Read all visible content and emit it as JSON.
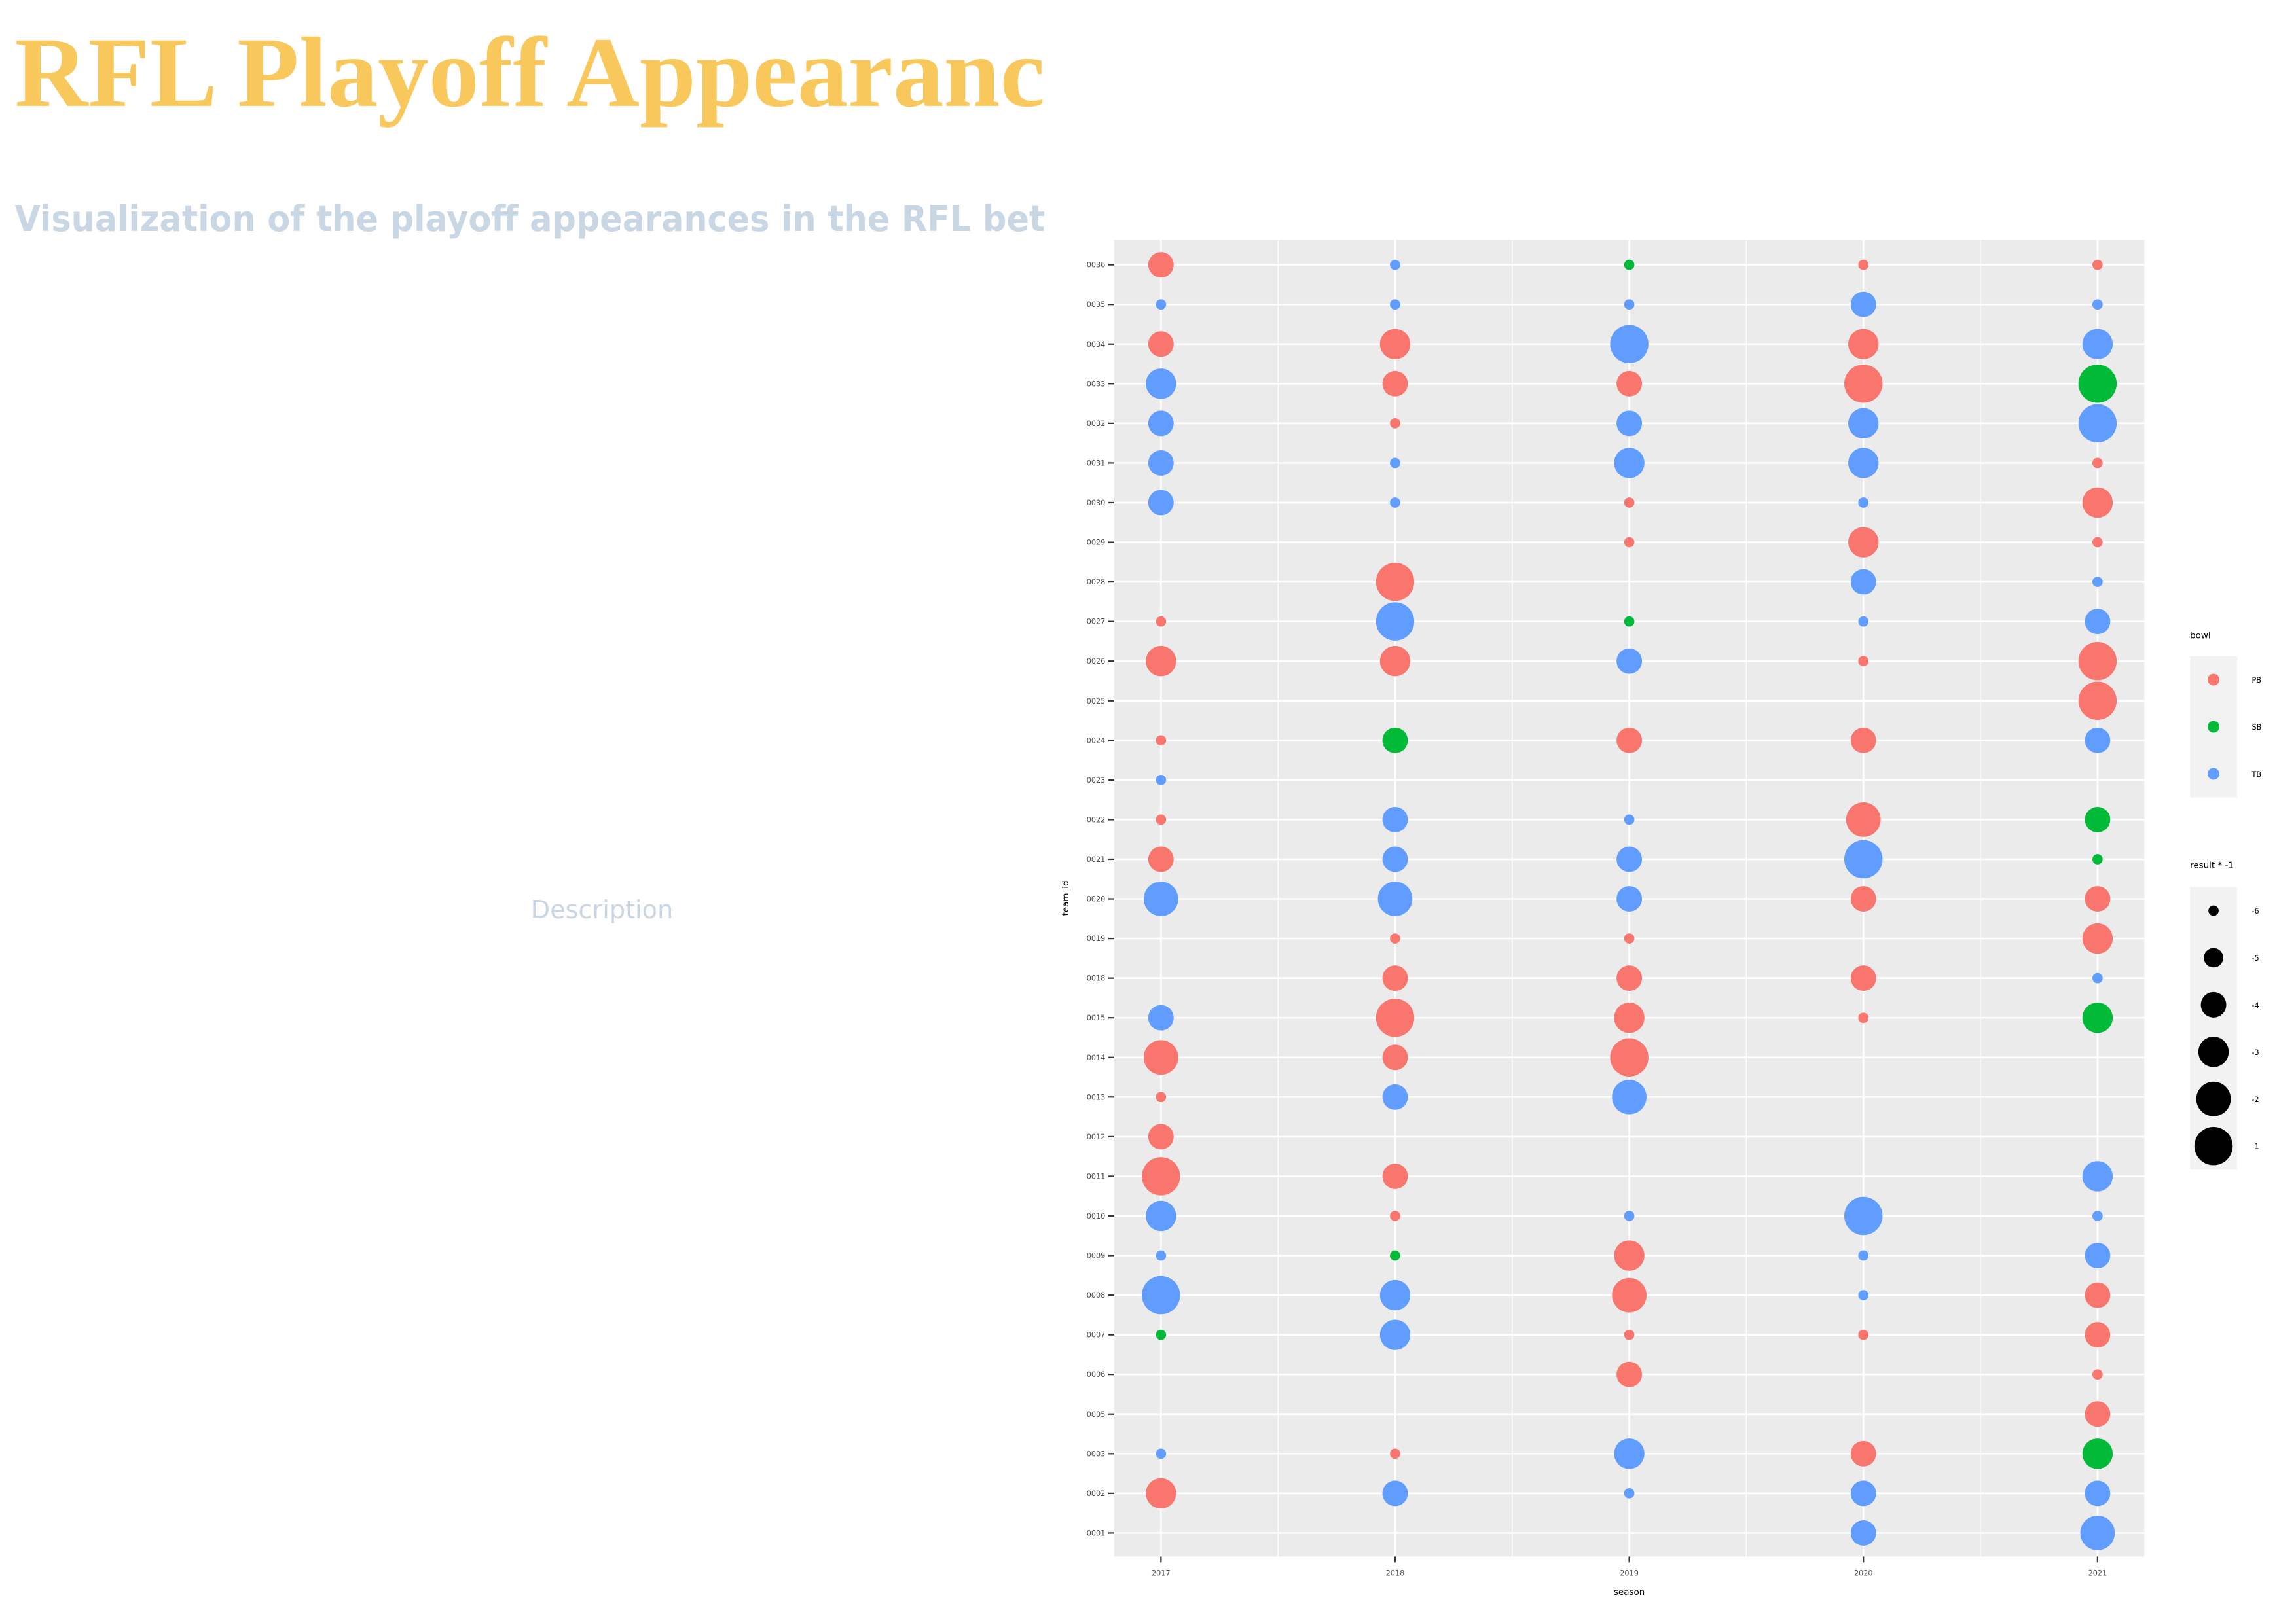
{
  "header": {
    "title": "RFL Playoff Appearanc",
    "subtitle": "Visualization of the playoff appearances in the RFL bet",
    "description": "Description"
  },
  "chart_data": {
    "type": "scatter",
    "x_label": "season",
    "y_label": "team_id",
    "xlim": [
      2016.8,
      2021.2
    ],
    "xticks": [
      2017,
      2018,
      2019,
      2020,
      2021
    ],
    "y_categories": [
      "0001",
      "0002",
      "0003",
      "0005",
      "0006",
      "0007",
      "0008",
      "0009",
      "0010",
      "0011",
      "0012",
      "0013",
      "0014",
      "0015",
      "0018",
      "0019",
      "0020",
      "0021",
      "0022",
      "0023",
      "0024",
      "0025",
      "0026",
      "0027",
      "0028",
      "0029",
      "0030",
      "0031",
      "0032",
      "0033",
      "0034",
      "0035",
      "0036"
    ],
    "grid": true,
    "legend_title": "bowl",
    "size_legend": {
      "title": "result * -1",
      "values": [
        -6,
        -5,
        -4,
        -3,
        -2,
        -1
      ]
    },
    "sizelim": [
      -6,
      -1
    ],
    "series": [
      {
        "name": "PB",
        "color": "#F8766D",
        "x": [
          2017,
          2020,
          2021,
          2017,
          2018,
          2020,
          2018,
          2019,
          2020,
          2018,
          2021,
          2019,
          2021,
          2019,
          2020,
          2021,
          2018,
          2017,
          2017,
          2018,
          2020,
          2021,
          2021,
          2017,
          2019,
          2020,
          2017,
          2020,
          2017,
          2020,
          2021,
          2018,
          2019,
          2021,
          2018,
          2019,
          2020,
          2018,
          2019,
          2020,
          2017,
          2018,
          2019,
          2017,
          2017,
          2017,
          2018,
          2018,
          2019,
          2019,
          2021,
          2019,
          2020,
          2021,
          2019,
          2021,
          2021,
          2018,
          2020,
          2017
        ],
        "y": [
          "0036",
          "0036",
          "0036",
          "0034",
          "0034",
          "0034",
          "0033",
          "0033",
          "0033",
          "0032",
          "0031",
          "0030",
          "0030",
          "0029",
          "0029",
          "0029",
          "0028",
          "0027",
          "0026",
          "0026",
          "0026",
          "0026",
          "0025",
          "0024",
          "0024",
          "0024",
          "0022",
          "0022",
          "0021",
          "0020",
          "0020",
          "0019",
          "0019",
          "0019",
          "0018",
          "0018",
          "0018",
          "0015",
          "0015",
          "0015",
          "0014",
          "0014",
          "0014",
          "0013",
          "0012",
          "0011",
          "0011",
          "0010",
          "0009",
          "0008",
          "0008",
          "0007",
          "0007",
          "0007",
          "0006",
          "0006",
          "0005",
          "0003",
          "0003",
          "0002"
        ],
        "values": [
          -4,
          -6,
          -6,
          -4,
          -3,
          -3,
          -4,
          -4,
          -1,
          -6,
          -6,
          -6,
          -3,
          -6,
          -3,
          -6,
          -1,
          -6,
          -3,
          -3,
          -6,
          -1,
          -1,
          -6,
          -4,
          -4,
          -6,
          -2,
          -4,
          -4,
          -4,
          -6,
          -6,
          -3,
          -4,
          -4,
          -4,
          -1,
          -3,
          -6,
          -2,
          -4,
          -1,
          -6,
          -4,
          -1,
          -4,
          -6,
          -3,
          -2,
          -4,
          -6,
          -6,
          -4,
          -4,
          -6,
          -4,
          -6,
          -4,
          -3
        ]
      },
      {
        "name": "SB",
        "color": "#00BA38",
        "x": [
          2019,
          2021,
          2019,
          2018,
          2021,
          2021,
          2021,
          2018,
          2017,
          2021
        ],
        "y": [
          "0036",
          "0033",
          "0027",
          "0024",
          "0022",
          "0021",
          "0015",
          "0009",
          "0007",
          "0003"
        ],
        "values": [
          -6,
          -1,
          -6,
          -4,
          -4,
          -6,
          -3,
          -6,
          -6,
          -3
        ]
      },
      {
        "name": "TB",
        "color": "#619CFF",
        "x": [
          2018,
          2017,
          2018,
          2019,
          2020,
          2021,
          2019,
          2021,
          2017,
          2017,
          2019,
          2020,
          2021,
          2017,
          2018,
          2019,
          2020,
          2017,
          2018,
          2020,
          2020,
          2021,
          2018,
          2020,
          2021,
          2019,
          2021,
          2017,
          2018,
          2019,
          2018,
          2019,
          2020,
          2017,
          2018,
          2019,
          2021,
          2017,
          2018,
          2019,
          2021,
          2017,
          2019,
          2020,
          2021,
          2017,
          2020,
          2021,
          2017,
          2018,
          2020,
          2018,
          2017,
          2019,
          2018,
          2019,
          2020,
          2021,
          2020,
          2021
        ],
        "y": [
          "0036",
          "0035",
          "0035",
          "0035",
          "0035",
          "0035",
          "0034",
          "0034",
          "0033",
          "0032",
          "0032",
          "0032",
          "0032",
          "0031",
          "0031",
          "0031",
          "0031",
          "0030",
          "0030",
          "0030",
          "0028",
          "0028",
          "0027",
          "0027",
          "0027",
          "0026",
          "0024",
          "0023",
          "0022",
          "0022",
          "0021",
          "0021",
          "0021",
          "0020",
          "0020",
          "0020",
          "0018",
          "0015",
          "0013",
          "0013",
          "0011",
          "0010",
          "0010",
          "0010",
          "0010",
          "0009",
          "0009",
          "0009",
          "0008",
          "0008",
          "0008",
          "0007",
          "0003",
          "0003",
          "0002",
          "0002",
          "0002",
          "0002",
          "0001",
          "0001"
        ],
        "values": [
          -6,
          -6,
          -6,
          -6,
          -4,
          -6,
          -1,
          -3,
          -3,
          -4,
          -4,
          -3,
          -1,
          -4,
          -6,
          -3,
          -3,
          -4,
          -6,
          -6,
          -4,
          -6,
          -1,
          -6,
          -4,
          -4,
          -4,
          -6,
          -4,
          -6,
          -4,
          -4,
          -1,
          -2,
          -2,
          -4,
          -6,
          -4,
          -4,
          -2,
          -3,
          -3,
          -6,
          -1,
          -6,
          -6,
          -6,
          -4,
          -1,
          -3,
          -6,
          -3,
          -6,
          -3,
          -4,
          -6,
          -4,
          -4,
          -4,
          -2
        ]
      }
    ]
  }
}
